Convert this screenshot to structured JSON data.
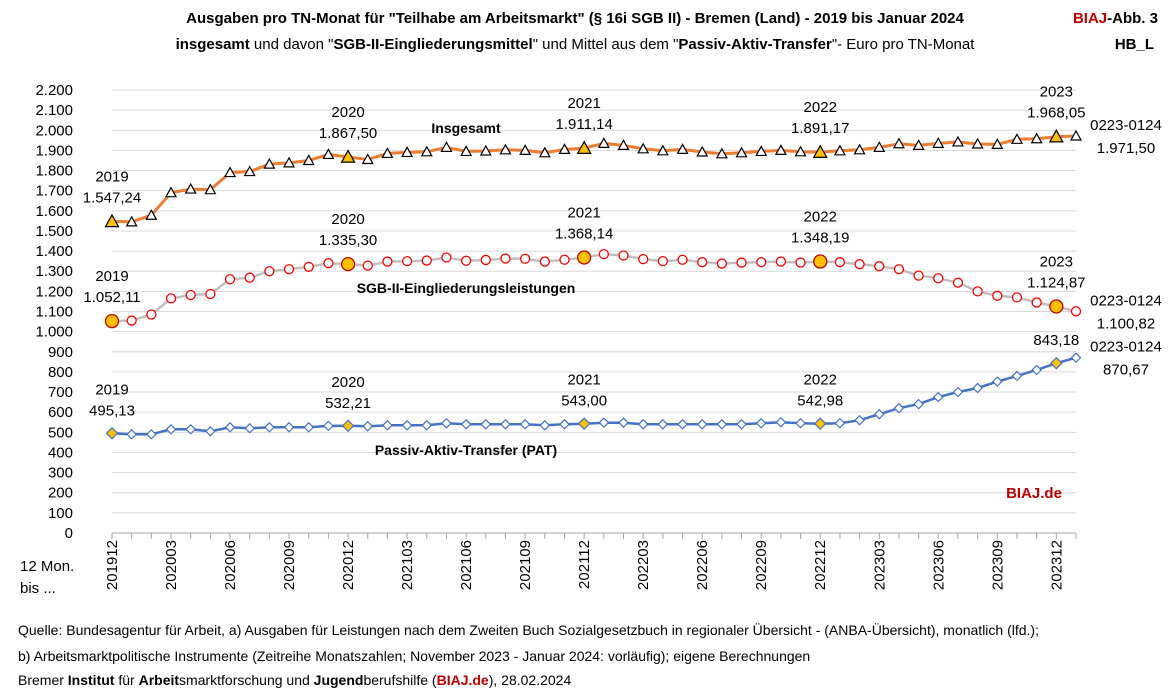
{
  "header": {
    "title_line1": "Ausgaben pro TN-Monat für \"Teilhabe am Arbeitsmarkt\" (§ 16i SGB II) - Bremen (Land) - 2019 bis Januar 2024",
    "title_line2": {
      "p1": "insgesamt",
      "p2": " und davon \"",
      "p3": "SGB-II-Eingliederungsmittel",
      "p4": "\" und Mittel aus dem  \"",
      "p5": "Passiv-Aktiv-Transfer",
      "p6": "\"- Euro pro TN-Monat"
    },
    "badge_biaj": "BIAJ",
    "badge_abb": "-Abb. 3",
    "badge_code": "HB_L"
  },
  "footer": {
    "line1": "Quelle: Bundesagentur für Arbeit, a) Ausgaben für Leistungen nach dem Zweiten Buch Sozialgesetzbuch in regionaler Übersicht - (ANBA-Übersicht), monatlich (lfd.);",
    "line2": "b) Arbeitsmarktpolitische Instrumente  (Zeitreihe Monatszahlen; November 2023 - Januar 2024: vorläufig); eigene Berechnungen",
    "line3": {
      "p1": "Bremer ",
      "p2": "Institut",
      "p3": " für ",
      "p4": "Arbeit",
      "p5": "smarktforschung und ",
      "p6": "Jugend",
      "p7": "berufshilfe (",
      "p8": "BIAJ.de",
      "p9": "), 28.02.2024"
    }
  },
  "x_unit_label": [
    "12 Mon.",
    "bis ..."
  ],
  "watermark": "BIAJ.de",
  "colors": {
    "insgesamt_line": "#ed7d31",
    "sgb_line": "#bfbfbf",
    "pat_line": "#4472c4",
    "highlight_fill": "#ffc000",
    "sgb_marker": "#ff0000",
    "pat_marker": "#4472c4",
    "grid": "#d9d9d9",
    "brand_red": "#c00000"
  },
  "chart_data": {
    "type": "line",
    "x": [
      "201912",
      "202001",
      "202002",
      "202003",
      "202004",
      "202005",
      "202006",
      "202007",
      "202008",
      "202009",
      "202010",
      "202011",
      "202012",
      "202101",
      "202102",
      "202103",
      "202104",
      "202105",
      "202106",
      "202107",
      "202108",
      "202109",
      "202110",
      "202111",
      "202112",
      "202201",
      "202202",
      "202203",
      "202204",
      "202205",
      "202206",
      "202207",
      "202208",
      "202209",
      "202210",
      "202211",
      "202212",
      "202301",
      "202302",
      "202303",
      "202304",
      "202305",
      "202306",
      "202307",
      "202308",
      "202309",
      "202310",
      "202311",
      "202312",
      "202401"
    ],
    "x_tick_labels": [
      "201912",
      "202003",
      "202006",
      "202009",
      "202012",
      "202103",
      "202106",
      "202109",
      "202112",
      "202203",
      "202206",
      "202209",
      "202212",
      "202303",
      "202306",
      "202309",
      "202312"
    ],
    "ylim": [
      0,
      2200
    ],
    "y_ticks": [
      0,
      100,
      200,
      300,
      400,
      500,
      600,
      700,
      800,
      900,
      1000,
      1100,
      1200,
      1300,
      1400,
      1500,
      1600,
      1700,
      1800,
      1900,
      2000,
      2100,
      2200
    ],
    "y_tick_labels": [
      "0",
      "100",
      "200",
      "300",
      "400",
      "500",
      "600",
      "700",
      "800",
      "900",
      "1.000",
      "1.100",
      "1.200",
      "1.300",
      "1.400",
      "1.500",
      "1.600",
      "1.700",
      "1.800",
      "1.900",
      "2.000",
      "2.100",
      "2.200"
    ],
    "grid": true,
    "series": [
      {
        "name": "Insgesamt",
        "marker": "triangle",
        "values": [
          1547.24,
          1545,
          1578,
          1690,
          1708,
          1705,
          1790,
          1795,
          1832,
          1838,
          1850,
          1880,
          1867.5,
          1855,
          1885,
          1890,
          1893,
          1915,
          1895,
          1897,
          1903,
          1900,
          1888,
          1905,
          1911.14,
          1935,
          1925,
          1908,
          1898,
          1905,
          1892,
          1883,
          1888,
          1895,
          1900,
          1893,
          1891.17,
          1898,
          1903,
          1915,
          1933,
          1925,
          1935,
          1942,
          1932,
          1930,
          1955,
          1958,
          1968.05,
          1971.5
        ],
        "highlight_x": [
          "201912",
          "202012",
          "202112",
          "202212",
          "202312"
        ]
      },
      {
        "name": "SGB-II-Eingliederungsleistungen",
        "marker": "circle",
        "values": [
          1052.11,
          1055,
          1085,
          1165,
          1182,
          1187,
          1260,
          1268,
          1300,
          1310,
          1322,
          1340,
          1335.3,
          1328,
          1348,
          1350,
          1353,
          1368,
          1352,
          1356,
          1363,
          1362,
          1348,
          1357,
          1368.14,
          1385,
          1378,
          1360,
          1350,
          1357,
          1345,
          1338,
          1343,
          1345,
          1348,
          1343,
          1348.19,
          1345,
          1335,
          1325,
          1310,
          1278,
          1265,
          1243,
          1200,
          1178,
          1170,
          1145,
          1124.87,
          1100.82
        ],
        "highlight_x": [
          "201912",
          "202012",
          "202112",
          "202212",
          "202312"
        ]
      },
      {
        "name": "Passiv-Aktiv-Transfer (PAT)",
        "marker": "diamond",
        "values": [
          495.13,
          490,
          490,
          515,
          515,
          505,
          525,
          520,
          525,
          525,
          525,
          532,
          532.21,
          530,
          535,
          535,
          535,
          545,
          540,
          540,
          540,
          540,
          535,
          540,
          543.0,
          548,
          548,
          540,
          540,
          540,
          540,
          540,
          540,
          545,
          550,
          545,
          542.98,
          545,
          560,
          590,
          620,
          640,
          675,
          700,
          720,
          752,
          780,
          810,
          843.18,
          870.67
        ],
        "highlight_x": [
          "201912",
          "202012",
          "202112",
          "202212",
          "202312"
        ]
      }
    ],
    "series_labels": [
      "Insgesamt",
      "SGB-II-Eingliederungsleistungen",
      "Passiv-Aktiv-Transfer (PAT)"
    ],
    "annotations": [
      {
        "series": 0,
        "x": "201912",
        "year": "2019",
        "value": "1.547,24"
      },
      {
        "series": 0,
        "x": "202012",
        "year": "2020",
        "value": "1.867,50"
      },
      {
        "series": 0,
        "x": "202112",
        "year": "2021",
        "value": "1.911,14"
      },
      {
        "series": 0,
        "x": "202212",
        "year": "2022",
        "value": "1.891,17"
      },
      {
        "series": 0,
        "x": "202312",
        "year": "2023",
        "value": "1.968,05"
      },
      {
        "series": 1,
        "x": "201912",
        "year": "2019",
        "value": "1.052,11"
      },
      {
        "series": 1,
        "x": "202012",
        "year": "2020",
        "value": "1.335,30"
      },
      {
        "series": 1,
        "x": "202112",
        "year": "2021",
        "value": "1.368,14"
      },
      {
        "series": 1,
        "x": "202212",
        "year": "2022",
        "value": "1.348,19"
      },
      {
        "series": 1,
        "x": "202312",
        "year": "2023",
        "value": "1.124,87"
      },
      {
        "series": 2,
        "x": "201912",
        "year": "2019",
        "value": "495,13"
      },
      {
        "series": 2,
        "x": "202012",
        "year": "2020",
        "value": "532,21"
      },
      {
        "series": 2,
        "x": "202112",
        "year": "2021",
        "value": "543,00"
      },
      {
        "series": 2,
        "x": "202212",
        "year": "2022",
        "value": "542,98"
      },
      {
        "series": 2,
        "x": "202312",
        "year": "",
        "value": "843,18"
      }
    ],
    "end_labels": [
      {
        "series": 0,
        "code": "0223-0124",
        "value": "1.971,50"
      },
      {
        "series": 1,
        "code": "0223-0124",
        "value": "1.100,82"
      },
      {
        "series": 2,
        "code": "0223-0124",
        "value": "870,67"
      }
    ]
  }
}
